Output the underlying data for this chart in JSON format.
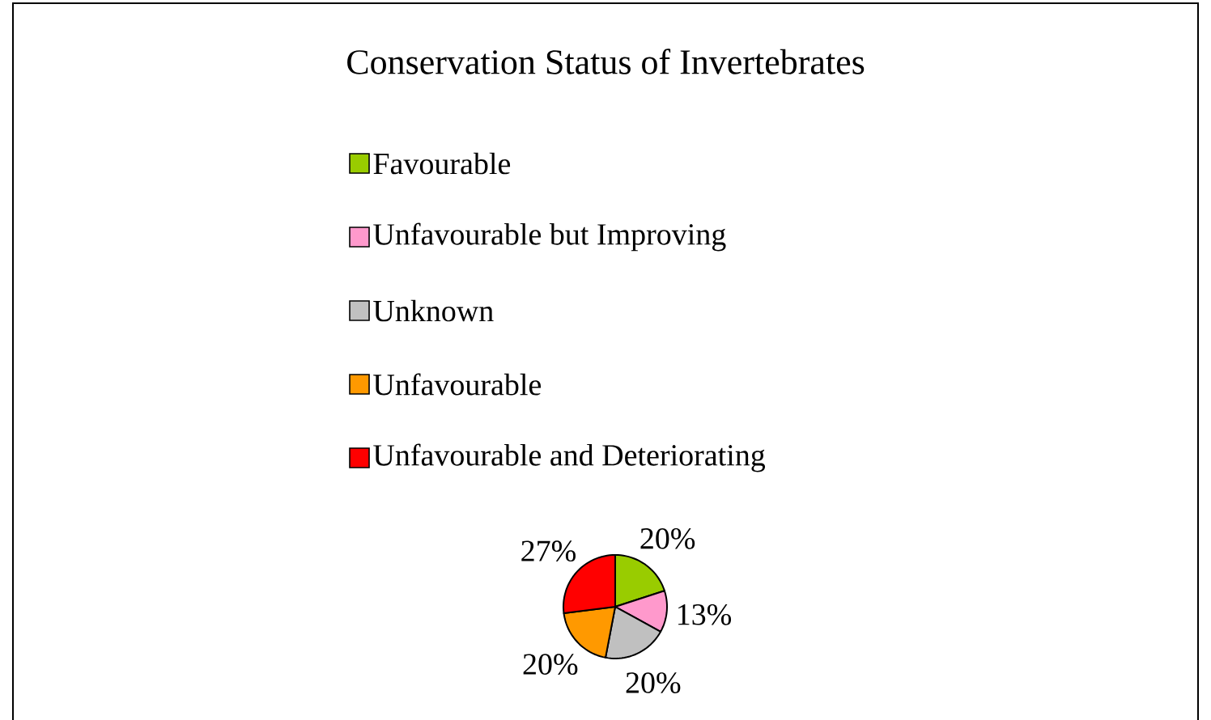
{
  "chart_data": {
    "type": "pie",
    "title": "Conservation Status of Invertebrates",
    "categories": [
      "Favourable",
      "Unfavourable but Improving",
      "Unknown",
      "Unfavourable",
      "Unfavourable and Deteriorating"
    ],
    "values": [
      20,
      13,
      20,
      20,
      27
    ],
    "value_labels": [
      "20%",
      "13%",
      "20%",
      "20%",
      "27%"
    ],
    "colors": [
      "#99cc00",
      "#ff99cc",
      "#c0c0c0",
      "#ff9900",
      "#ff0000"
    ],
    "legend": "top"
  }
}
